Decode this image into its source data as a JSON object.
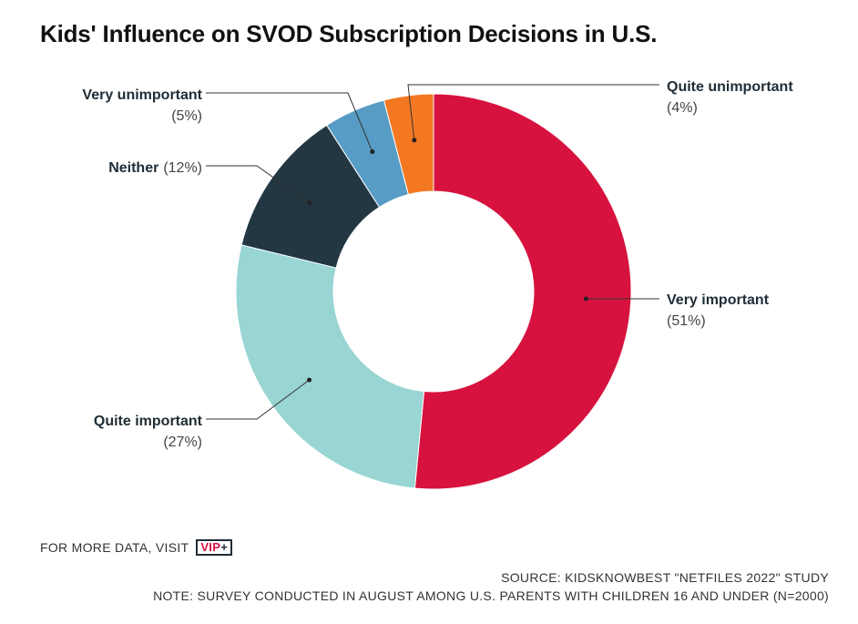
{
  "chart_data": {
    "type": "pie",
    "variant": "donut",
    "title": "Kids' Influence on SVOD Subscription Decisions in U.S.",
    "slices": [
      {
        "name": "Very important",
        "value": 51,
        "label": "(51%)",
        "color": "#d7123f"
      },
      {
        "name": "Quite important",
        "value": 27,
        "label": "(27%)",
        "color": "#98d5d3"
      },
      {
        "name": "Neither",
        "value": 12,
        "label": "(12%)",
        "color": "#233743"
      },
      {
        "name": "Very unimportant",
        "value": 5,
        "label": "(5%)",
        "color": "#579cc4"
      },
      {
        "name": "Quite unimportant",
        "value": 4,
        "label": "(4%)",
        "color": "#f47721"
      }
    ]
  },
  "footer": {
    "more_data": "FOR MORE DATA, VISIT",
    "vip_main": "VIP",
    "vip_plus": "+",
    "source": "SOURCE: KIDSKNOWBEST \"NETFILES 2022\" STUDY",
    "note": "NOTE: SURVEY CONDUCTED IN AUGUST AMONG U.S. PARENTS WITH CHILDREN 16 AND UNDER (N=2000)"
  }
}
